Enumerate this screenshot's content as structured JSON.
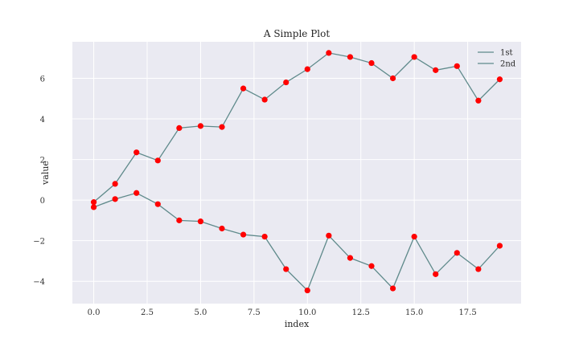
{
  "chart_data": {
    "type": "line",
    "title": "A Simple Plot",
    "xlabel": "index",
    "ylabel": "value",
    "xlim": [
      -1,
      20
    ],
    "ylim": [
      -5.1,
      7.8
    ],
    "xticks": [
      0.0,
      2.5,
      5.0,
      7.5,
      10.0,
      12.5,
      15.0,
      17.5
    ],
    "xtick_labels": [
      "0.0",
      "2.5",
      "5.0",
      "7.5",
      "10.0",
      "12.5",
      "15.0",
      "17.5"
    ],
    "yticks": [
      -4,
      -2,
      0,
      2,
      4,
      6
    ],
    "ytick_labels": [
      "−4",
      "−2",
      "0",
      "2",
      "4",
      "6"
    ],
    "grid": true,
    "legend_position": "top-right",
    "line_color": "#5f8a8b",
    "marker_color": "#ff0000",
    "background_color": "#eaeaf2",
    "x": [
      0,
      1,
      2,
      3,
      4,
      5,
      6,
      7,
      8,
      9,
      10,
      11,
      12,
      13,
      14,
      15,
      16,
      17,
      18,
      19
    ],
    "series": [
      {
        "name": "1st",
        "values": [
          -0.1,
          0.8,
          2.35,
          1.95,
          3.55,
          3.65,
          3.6,
          5.5,
          4.95,
          5.8,
          6.45,
          7.25,
          7.05,
          6.75,
          6.0,
          7.05,
          6.4,
          6.6,
          4.9,
          5.95
        ]
      },
      {
        "name": "2nd",
        "values": [
          -0.35,
          0.05,
          0.35,
          -0.2,
          -1.0,
          -1.05,
          -1.4,
          -1.7,
          -1.8,
          -3.4,
          -4.45,
          -1.75,
          -2.85,
          -3.25,
          -4.35,
          -1.8,
          -3.65,
          -2.6,
          -3.4,
          -2.25
        ]
      }
    ]
  }
}
